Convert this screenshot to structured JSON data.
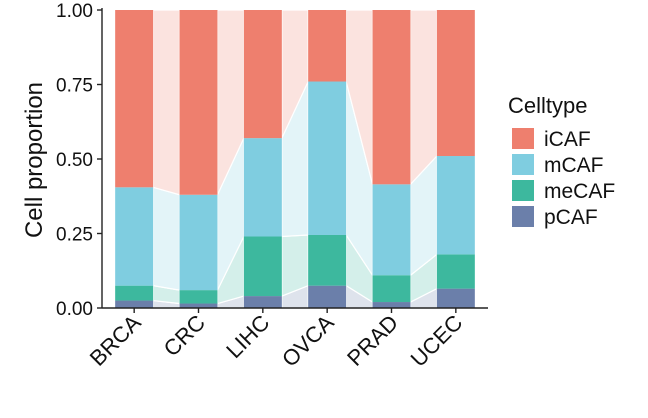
{
  "chart_data": {
    "type": "bar",
    "stacked": true,
    "normalized": true,
    "alluvial_connectors": true,
    "title": "",
    "xlabel": "",
    "ylabel": "Cell proportion",
    "ylim": [
      0,
      1
    ],
    "yticks": [
      "0.00",
      "0.25",
      "0.50",
      "0.75",
      "1.00"
    ],
    "categories": [
      "BRCA",
      "CRC",
      "LIHC",
      "OVCA",
      "PRAD",
      "UCEC"
    ],
    "legend": {
      "title": "Celltype",
      "position": "right"
    },
    "grid": false,
    "series": [
      {
        "name": "pCAF",
        "color": "#6B7FAA",
        "values": [
          0.025,
          0.015,
          0.04,
          0.075,
          0.02,
          0.065
        ]
      },
      {
        "name": "meCAF",
        "color": "#3DB89E",
        "values": [
          0.05,
          0.045,
          0.2,
          0.17,
          0.09,
          0.115
        ]
      },
      {
        "name": "mCAF",
        "color": "#7FCDE0",
        "values": [
          0.33,
          0.32,
          0.33,
          0.515,
          0.305,
          0.33
        ]
      },
      {
        "name": "iCAF",
        "color": "#EE7F6E",
        "values": [
          0.595,
          0.62,
          0.43,
          0.24,
          0.585,
          0.49
        ]
      }
    ],
    "legend_order": [
      "iCAF",
      "mCAF",
      "meCAF",
      "pCAF"
    ]
  }
}
